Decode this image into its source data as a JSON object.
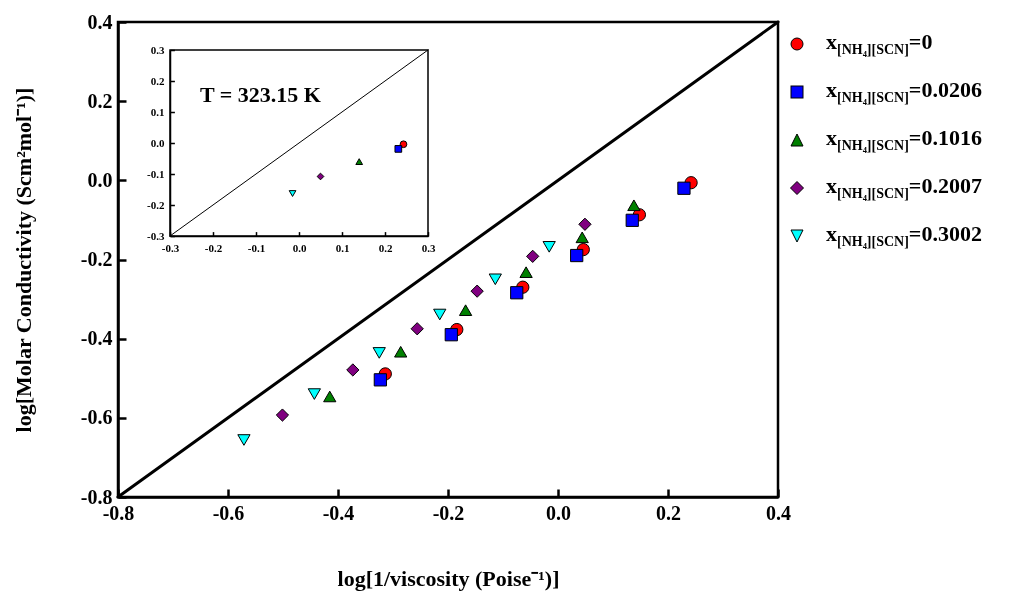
{
  "chart_data": [
    {
      "type": "scatter",
      "xlabel": "log[1/viscosity (Poise⁻¹)]",
      "ylabel": "log[Molar Conductivity (Scm²mol⁻¹)]",
      "xlim": [
        -0.8,
        0.4
      ],
      "ylim": [
        -0.8,
        0.4
      ],
      "xticks": [
        -0.8,
        -0.6,
        -0.4,
        -0.2,
        {
          "value": 0,
          "label": "0.0"
        },
        0.2,
        0.4
      ],
      "yticks": [
        -0.8,
        -0.6,
        -0.4,
        -0.2,
        {
          "value": 0,
          "label": "0.0"
        },
        0.2,
        0.4
      ],
      "legend": "right",
      "series": [
        {
          "name": "x$_{[NH₄][SCN]}$=0",
          "color": "#ff0000",
          "marker": "circle",
          "x": [
            -0.314,
            -0.184,
            -0.064,
            0.046,
            0.148,
            0.242
          ],
          "values": [
            -0.489,
            -0.377,
            -0.27,
            -0.175,
            -0.087,
            -0.006
          ]
        },
        {
          "name": "x$_{[NH₄][SCN]}$=0.0206",
          "color": "#0000ff",
          "marker": "square",
          "x": [
            -0.323,
            -0.194,
            -0.075,
            0.034,
            0.135,
            0.229
          ],
          "values": [
            -0.504,
            -0.39,
            -0.284,
            -0.19,
            -0.101,
            -0.02
          ]
        },
        {
          "name": "x$_{[NH₄][SCN]}$=0.1016",
          "color": "#008000",
          "marker": "triangle",
          "x": [
            -0.415,
            -0.286,
            -0.168,
            -0.058,
            0.044,
            0.138
          ],
          "values": [
            -0.546,
            -0.433,
            -0.328,
            -0.232,
            -0.144,
            -0.063
          ]
        },
        {
          "name": "x$_{[NH₄][SCN]}$=0.2007",
          "color": "#800080",
          "marker": "diamond",
          "x": [
            -0.501,
            -0.373,
            -0.256,
            -0.147,
            -0.046,
            0.049
          ],
          "values": [
            -0.593,
            -0.479,
            -0.375,
            -0.28,
            -0.192,
            -0.111
          ]
        },
        {
          "name": "x$_{[NH₄][SCN]}$=0.3002",
          "color": "#00ffff",
          "marker": "triangle-down",
          "x": [
            -0.571,
            -0.443,
            -0.325,
            -0.215,
            -0.114,
            -0.016
          ],
          "values": [
            -0.656,
            -0.54,
            -0.436,
            -0.339,
            -0.25,
            -0.168
          ]
        },
        {
          "type": "line",
          "color": "#000000",
          "x": [
            -0.8,
            0.4
          ],
          "values": [
            -0.8,
            0.4
          ]
        }
      ]
    },
    {
      "type": "scatter",
      "annotations": [
        "T = 323.15 K"
      ],
      "xlim": [
        -0.3,
        0.3
      ],
      "ylim": [
        -0.3,
        0.3
      ],
      "xticks": [
        -0.3,
        -0.2,
        -0.1,
        {
          "value": 0,
          "label": "0.0"
        },
        0.1,
        0.2,
        0.3
      ],
      "yticks": [
        -0.3,
        -0.2,
        -0.1,
        {
          "value": 0,
          "label": "0.0"
        },
        0.1,
        0.2,
        0.3
      ],
      "series": [
        {
          "color": "#ff0000",
          "marker": "circle",
          "x": [
            0.243
          ],
          "values": [
            -0.004
          ]
        },
        {
          "color": "#0000ff",
          "marker": "square",
          "x": [
            0.231
          ],
          "values": [
            -0.019
          ]
        },
        {
          "color": "#008000",
          "marker": "triangle",
          "x": [
            0.14
          ],
          "values": [
            -0.06
          ]
        },
        {
          "color": "#800080",
          "marker": "diamond",
          "x": [
            0.05
          ],
          "values": [
            -0.108
          ]
        },
        {
          "color": "#00ffff",
          "marker": "triangle-down",
          "x": [
            -0.015
          ],
          "values": [
            -0.163
          ]
        },
        {
          "type": "line",
          "color": "#000000",
          "x": [
            -0.3,
            0.3
          ],
          "values": [
            -0.3,
            0.3
          ]
        }
      ]
    }
  ]
}
